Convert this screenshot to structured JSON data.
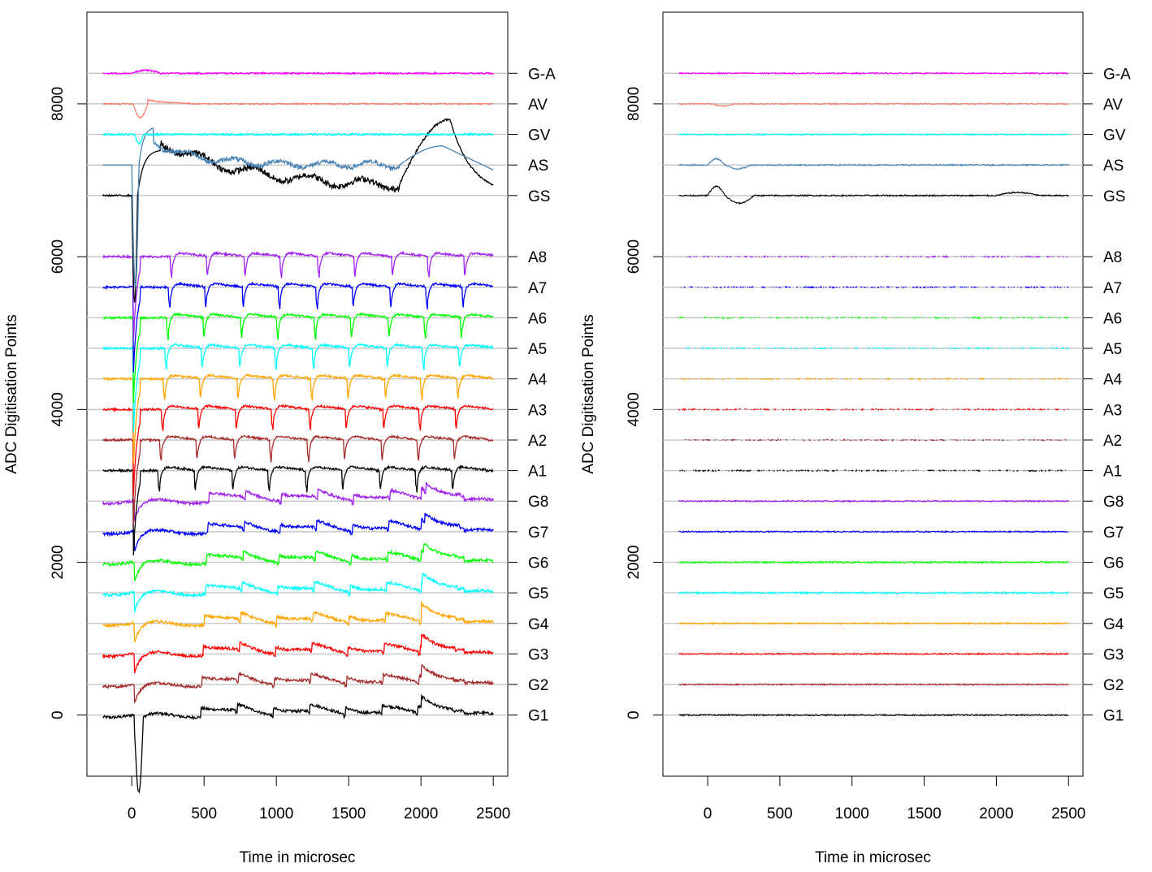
{
  "chart_data": [
    {
      "type": "line",
      "panel": "left",
      "xlabel": "Time in microsec",
      "ylabel": "ADC Digitisation Points",
      "xlim": [
        -310,
        2600
      ],
      "ylim": [
        -800,
        9200
      ],
      "xticks": [
        0,
        500,
        1000,
        1500,
        2000,
        2500
      ],
      "xtick_labels": [
        "0",
        "500",
        "1000",
        "1500",
        "2000",
        "2500"
      ],
      "yticks": [
        0,
        2000,
        4000,
        6000,
        8000
      ],
      "ytick_labels": [
        "0",
        "2000",
        "4000",
        "6000",
        "8000"
      ],
      "channels": [
        {
          "name": "G1",
          "baseline": 0,
          "color": "#000000"
        },
        {
          "name": "G2",
          "baseline": 400,
          "color": "#A52A2A"
        },
        {
          "name": "G3",
          "baseline": 800,
          "color": "#FF0000"
        },
        {
          "name": "G4",
          "baseline": 1200,
          "color": "#FFA500"
        },
        {
          "name": "G5",
          "baseline": 1600,
          "color": "#00FFFF"
        },
        {
          "name": "G6",
          "baseline": 2000,
          "color": "#00FF00"
        },
        {
          "name": "G7",
          "baseline": 2400,
          "color": "#0000FF"
        },
        {
          "name": "G8",
          "baseline": 2800,
          "color": "#A020F0"
        },
        {
          "name": "A1",
          "baseline": 3200,
          "color": "#000000"
        },
        {
          "name": "A2",
          "baseline": 3600,
          "color": "#A52A2A"
        },
        {
          "name": "A3",
          "baseline": 4000,
          "color": "#FF0000"
        },
        {
          "name": "A4",
          "baseline": 4400,
          "color": "#FFA500"
        },
        {
          "name": "A5",
          "baseline": 4800,
          "color": "#00FFFF"
        },
        {
          "name": "A6",
          "baseline": 5200,
          "color": "#00FF00"
        },
        {
          "name": "A7",
          "baseline": 5600,
          "color": "#0000FF"
        },
        {
          "name": "A8",
          "baseline": 6000,
          "color": "#A020F0"
        },
        {
          "name": "GS",
          "baseline": 6800,
          "color": "#000000"
        },
        {
          "name": "AS",
          "baseline": 7200,
          "color": "#4682B4"
        },
        {
          "name": "GV",
          "baseline": 7600,
          "color": "#00FFFF"
        },
        {
          "name": "AV",
          "baseline": 8000,
          "color": "#FA8072"
        },
        {
          "name": "G-A",
          "baseline": 8400,
          "color": "#FF00FF"
        }
      ]
    },
    {
      "type": "line",
      "panel": "right",
      "xlabel": "Time in microsec",
      "ylabel": "ADC Digitisation Points",
      "xlim": [
        -310,
        2600
      ],
      "ylim": [
        -800,
        9200
      ],
      "xticks": [
        0,
        500,
        1000,
        1500,
        2000,
        2500
      ],
      "xtick_labels": [
        "0",
        "500",
        "1000",
        "1500",
        "2000",
        "2500"
      ],
      "yticks": [
        0,
        2000,
        4000,
        6000,
        8000
      ],
      "ytick_labels": [
        "0",
        "2000",
        "4000",
        "6000",
        "8000"
      ],
      "channels": [
        {
          "name": "G1",
          "baseline": 0,
          "color": "#000000"
        },
        {
          "name": "G2",
          "baseline": 400,
          "color": "#A52A2A"
        },
        {
          "name": "G3",
          "baseline": 800,
          "color": "#FF0000"
        },
        {
          "name": "G4",
          "baseline": 1200,
          "color": "#FFA500"
        },
        {
          "name": "G5",
          "baseline": 1600,
          "color": "#00FFFF"
        },
        {
          "name": "G6",
          "baseline": 2000,
          "color": "#00FF00"
        },
        {
          "name": "G7",
          "baseline": 2400,
          "color": "#0000FF"
        },
        {
          "name": "G8",
          "baseline": 2800,
          "color": "#A020F0"
        },
        {
          "name": "A1",
          "baseline": 3200,
          "color": "#000000"
        },
        {
          "name": "A2",
          "baseline": 3600,
          "color": "#A52A2A"
        },
        {
          "name": "A3",
          "baseline": 4000,
          "color": "#FF0000"
        },
        {
          "name": "A4",
          "baseline": 4400,
          "color": "#FFA500"
        },
        {
          "name": "A5",
          "baseline": 4800,
          "color": "#00FFFF"
        },
        {
          "name": "A6",
          "baseline": 5200,
          "color": "#00FF00"
        },
        {
          "name": "A7",
          "baseline": 5600,
          "color": "#0000FF"
        },
        {
          "name": "A8",
          "baseline": 6000,
          "color": "#A020F0"
        },
        {
          "name": "GS",
          "baseline": 6800,
          "color": "#000000"
        },
        {
          "name": "AS",
          "baseline": 7200,
          "color": "#4682B4"
        },
        {
          "name": "GV",
          "baseline": 7600,
          "color": "#00FFFF"
        },
        {
          "name": "AV",
          "baseline": 8000,
          "color": "#FA8072"
        },
        {
          "name": "G-A",
          "baseline": 8400,
          "color": "#FF00FF"
        }
      ]
    }
  ]
}
